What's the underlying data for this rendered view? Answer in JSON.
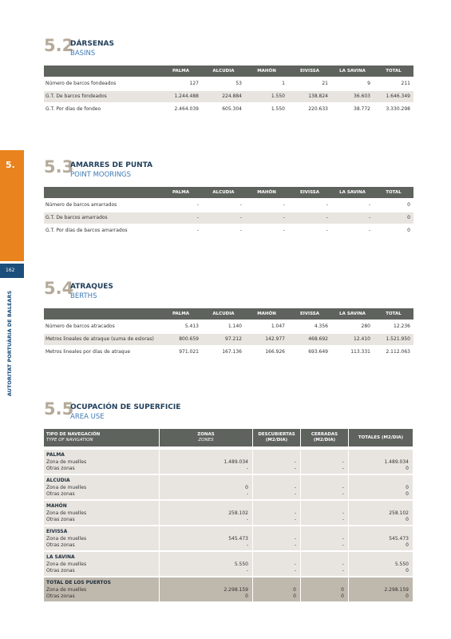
{
  "sidebar": {
    "chapter": "5.",
    "page": "162",
    "publisher": "AUTORITAT PORTUÀRIA DE BALEARS"
  },
  "sections": [
    {
      "number": "5.2",
      "title": "DÁRSENAS",
      "subtitle": "BASINS",
      "table": {
        "columns": [
          "PALMA",
          "ALCUDIA",
          "MAHÓN",
          "EIVISSA",
          "LA SAVINA",
          "TOTAL"
        ],
        "rows": [
          {
            "label": "Número de barcos fondeados",
            "values": [
              "127",
              "53",
              "1",
              "21",
              "9",
              "211"
            ]
          },
          {
            "label": "G.T. De barcos fondeados",
            "values": [
              "1.244.488",
              "224.884",
              "1.550",
              "138.824",
              "36.603",
              "1.646.349"
            ]
          },
          {
            "label": "G.T. Por días de fondeo",
            "values": [
              "2.464.039",
              "605.304",
              "1.550",
              "220.633",
              "38.772",
              "3.330.298"
            ]
          }
        ]
      }
    },
    {
      "number": "5.3",
      "title": "AMARRES DE PUNTA",
      "subtitle": "POINT MOORINGS",
      "table": {
        "columns": [
          "PALMA",
          "ALCUDIA",
          "MAHÓN",
          "EIVISSA",
          "LA SAVINA",
          "TOTAL"
        ],
        "rows": [
          {
            "label": "Número de barcos amarrados",
            "values": [
              "-",
              "-",
              "-",
              "-",
              "-",
              "0"
            ]
          },
          {
            "label": "G.T. De barcos amarrados",
            "values": [
              "-",
              "-",
              "-",
              "-",
              "-",
              "0"
            ]
          },
          {
            "label": "G.T. Por días de barcos amarrados",
            "values": [
              "-",
              "-",
              "-",
              "-",
              "-",
              "0"
            ]
          }
        ]
      }
    },
    {
      "number": "5.4",
      "title": "ATRAQUES",
      "subtitle": "BERTHS",
      "table": {
        "columns": [
          "PALMA",
          "ALCUDIA",
          "MAHÓN",
          "EIVISSA",
          "LA SAVINA",
          "TOTAL"
        ],
        "rows": [
          {
            "label": "Número de barcos atracados",
            "values": [
              "5.413",
              "1.140",
              "1.047",
              "4.356",
              "280",
              "12.236"
            ]
          },
          {
            "label": "Metros lineales de atraque (suma de esloras)",
            "values": [
              "800.659",
              "97.212",
              "142.977",
              "468.692",
              "12.410",
              "1.521.950"
            ]
          },
          {
            "label": "Metros lineales por días de atraque",
            "values": [
              "971.021",
              "167.136",
              "166.926",
              "693.649",
              "113.331",
              "2.112.063"
            ]
          }
        ]
      }
    },
    {
      "number": "5.5",
      "title": "OCUPACIÓN DE SUPERFICIE",
      "subtitle": "AREA USE",
      "table": {
        "columns": [
          {
            "label": "TIPO DE NAVEGACIÓN",
            "sublabel": "TYPE OF NAVIGATION"
          },
          {
            "label": "ZONAS",
            "sublabel": "ZONES"
          },
          {
            "label": "DESCUBIERTAS",
            "sublabel": "(M2/DIA)"
          },
          {
            "label": "CERRADAS",
            "sublabel": "(M2/DIA)"
          },
          {
            "label": "TOTALES (M2/DIA)"
          }
        ],
        "groups": [
          {
            "name": "PALMA",
            "rows": [
              {
                "label": "Zona de muelles",
                "values": [
                  "1.489.034",
                  "-",
                  "-",
                  "1.489.034"
                ]
              },
              {
                "label": "Otras zonas",
                "values": [
                  "-",
                  "-",
                  "-",
                  "0"
                ]
              }
            ]
          },
          {
            "name": "ALCUDIA",
            "rows": [
              {
                "label": "Zona de muelles",
                "values": [
                  "0",
                  "-",
                  "-",
                  "0"
                ]
              },
              {
                "label": "Otras zonas",
                "values": [
                  "-",
                  "-",
                  "-",
                  "0"
                ]
              }
            ]
          },
          {
            "name": "MAHÓN",
            "rows": [
              {
                "label": "Zona de muelles",
                "values": [
                  "258.102",
                  "-",
                  "-",
                  "258.102"
                ]
              },
              {
                "label": "Otras zonas",
                "values": [
                  "-",
                  "-",
                  "-",
                  "0"
                ]
              }
            ]
          },
          {
            "name": "EIVISSA",
            "rows": [
              {
                "label": "Zona de muelles",
                "values": [
                  "545.473",
                  "-",
                  "-",
                  "545.473"
                ]
              },
              {
                "label": "Otras zonas",
                "values": [
                  "-",
                  "-",
                  "-",
                  "0"
                ]
              }
            ]
          },
          {
            "name": "LA SAVINA",
            "rows": [
              {
                "label": "Zona de muelles",
                "values": [
                  "5.550",
                  "-",
                  "-",
                  "5.550"
                ]
              },
              {
                "label": "Otras zonas",
                "values": [
                  "-",
                  "-",
                  "-",
                  "0"
                ]
              }
            ]
          },
          {
            "name": "TOTAL DE LOS PUERTOS",
            "rows": [
              {
                "label": "Zona de muelles",
                "values": [
                  "2.298.159",
                  "0",
                  "0",
                  "2.298.159"
                ]
              },
              {
                "label": "Otras zonas",
                "values": [
                  "0",
                  "0",
                  "0",
                  "0"
                ]
              }
            ]
          }
        ]
      }
    }
  ]
}
